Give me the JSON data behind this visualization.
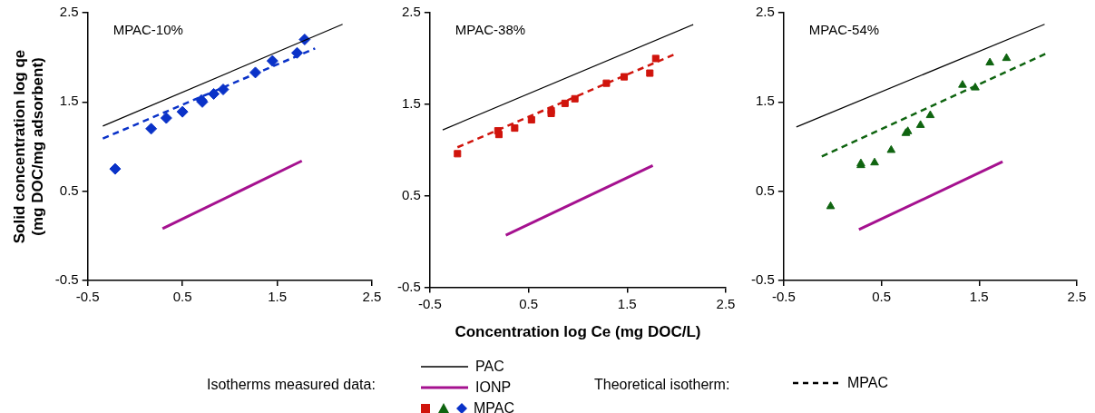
{
  "chart_data": [
    {
      "type": "scatter",
      "title": "MPAC-10%",
      "ylabel": "Solid concentration log qe\n(mg DOC/mg adsorbent)",
      "xlim": [
        -0.5,
        2.5
      ],
      "xticks": [
        -0.5,
        0.5,
        1.5,
        2.5
      ],
      "ylim": [
        -0.5,
        2.5
      ],
      "yticks": [
        -0.5,
        0.5,
        1.5,
        2.5
      ],
      "grid": false,
      "legend": "bottom",
      "legend_title": "Isotherms measured data:",
      "annotations": [
        "Theoretical isotherm:",
        "MPAC"
      ],
      "series": [
        {
          "name": "PAC",
          "type": "line",
          "color": "#000000",
          "marker": "none",
          "line_style": "solid",
          "x": [
            -0.34,
            2.19
          ],
          "values": [
            1.23,
            2.37
          ]
        },
        {
          "name": "IONP",
          "type": "line",
          "color": "#a5118f",
          "marker": "none",
          "line_style": "solid",
          "x": [
            0.29,
            1.76
          ],
          "values": [
            0.08,
            0.84
          ]
        },
        {
          "name": "MPAC",
          "type": "scatter",
          "color": "#0a32c8",
          "marker": "diamond",
          "x": [
            -0.21,
            0.17,
            0.33,
            0.5,
            0.7,
            0.71,
            0.83,
            0.93,
            1.27,
            1.45,
            1.71,
            1.79
          ],
          "values": [
            0.75,
            1.2,
            1.32,
            1.39,
            1.52,
            1.5,
            1.59,
            1.64,
            1.83,
            1.96,
            2.05,
            2.2
          ]
        },
        {
          "type": "line",
          "color": "#0a32c8",
          "marker": "none",
          "line_style": "dashed",
          "x": [
            -0.34,
            1.9
          ],
          "values": [
            1.09,
            2.1
          ]
        }
      ]
    },
    {
      "type": "scatter",
      "title": "MPAC-38%",
      "xlabel": "Concentration log Ce (mg DOC/L)",
      "xlim": [
        -0.5,
        2.5
      ],
      "xticks": [
        -0.5,
        0.5,
        1.5,
        2.5
      ],
      "ylim": [
        -0.5,
        2.5
      ],
      "yticks": [
        -0.5,
        0.5,
        1.5,
        2.5
      ],
      "grid": false,
      "series": [
        {
          "type": "line",
          "color": "#000000",
          "marker": "none",
          "line_style": "solid",
          "x": [
            -0.37,
            2.17
          ],
          "values": [
            1.22,
            2.37
          ]
        },
        {
          "type": "line",
          "color": "#a5118f",
          "marker": "none",
          "line_style": "solid",
          "x": [
            0.27,
            1.76
          ],
          "values": [
            0.07,
            0.83
          ]
        },
        {
          "type": "scatter",
          "color": "#d0140c",
          "marker": "square",
          "x": [
            -0.22,
            0.19,
            0.2,
            0.36,
            0.53,
            0.73,
            0.73,
            0.87,
            0.97,
            1.29,
            1.47,
            1.73,
            1.79
          ],
          "values": [
            0.96,
            1.21,
            1.17,
            1.24,
            1.33,
            1.43,
            1.4,
            1.51,
            1.56,
            1.73,
            1.8,
            1.84,
            2.0
          ]
        },
        {
          "type": "line",
          "color": "#d0140c",
          "marker": "none",
          "line_style": "dashed",
          "x": [
            -0.22,
            1.99
          ],
          "values": [
            1.03,
            2.05
          ]
        }
      ]
    },
    {
      "type": "scatter",
      "title": "MPAC-54%",
      "xlim": [
        -0.5,
        2.5
      ],
      "xticks": [
        -0.5,
        0.5,
        1.5,
        2.5
      ],
      "ylim": [
        -0.5,
        2.5
      ],
      "yticks": [
        -0.5,
        0.5,
        1.5,
        2.5
      ],
      "grid": false,
      "series": [
        {
          "type": "line",
          "color": "#000000",
          "marker": "none",
          "line_style": "solid",
          "x": [
            -0.37,
            2.17
          ],
          "values": [
            1.22,
            2.37
          ]
        },
        {
          "type": "line",
          "color": "#a5118f",
          "marker": "none",
          "line_style": "solid",
          "x": [
            0.27,
            1.74
          ],
          "values": [
            0.07,
            0.83
          ]
        },
        {
          "type": "scatter",
          "color": "#0f6410",
          "marker": "triangle",
          "x": [
            -0.02,
            0.29,
            0.29,
            0.43,
            0.6,
            0.75,
            0.77,
            0.9,
            1.0,
            1.33,
            1.46,
            1.61,
            1.78
          ],
          "values": [
            0.33,
            0.79,
            0.81,
            0.82,
            0.96,
            1.15,
            1.17,
            1.24,
            1.35,
            1.69,
            1.66,
            1.94,
            1.99
          ]
        },
        {
          "type": "line",
          "color": "#0f6410",
          "marker": "none",
          "line_style": "dashed",
          "x": [
            -0.11,
            2.2
          ],
          "values": [
            0.89,
            2.05
          ]
        }
      ]
    }
  ]
}
